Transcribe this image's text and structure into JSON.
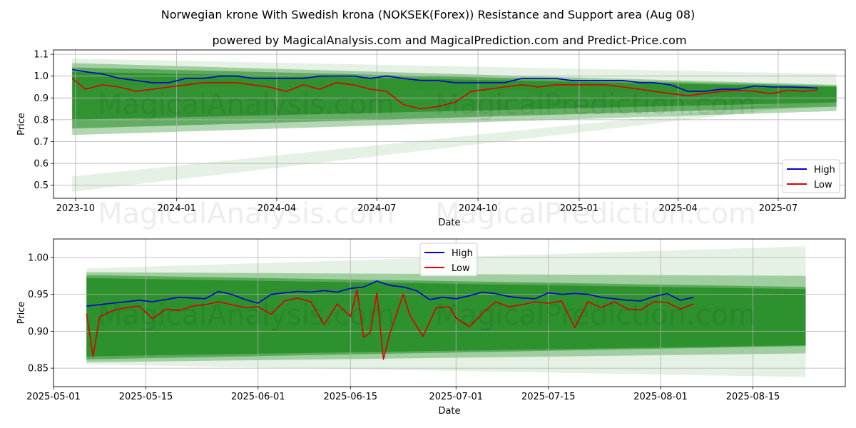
{
  "figure": {
    "title": "Norwegian krone With Swedish krona (NOKSEK(Forex)) Resistance and Support area (Aug 08)",
    "subtitle": "powered by MagicalAnalysis.com and MagicalPrediction.com and Predict-Price.com",
    "watermarks": [
      "MagicalAnalysis.com",
      "MagicalPrediction.com"
    ]
  },
  "colors": {
    "high": "#0000cc",
    "low": "#dd0000",
    "band": "#228b22",
    "grid": "#b0b0b0"
  },
  "chart_data": [
    {
      "type": "line",
      "id": "top",
      "xlabel": "Date",
      "ylabel": "Price",
      "xlim": [
        "2023-09-11",
        "2025-08-31"
      ],
      "ylim": [
        0.44,
        1.12
      ],
      "x_ticks": [
        "2023-10-01",
        "2024-01-01",
        "2024-04-01",
        "2024-07-01",
        "2024-10-01",
        "2025-01-01",
        "2025-04-01",
        "2025-07-01"
      ],
      "x_tick_labels": [
        "2023-10",
        "2024-01",
        "2024-04",
        "2024-07",
        "2024-10",
        "2025-01",
        "2025-04",
        "2025-07"
      ],
      "y_ticks": [
        0.5,
        0.6,
        0.7,
        0.8,
        0.9,
        1.0,
        1.1
      ],
      "y_tick_labels": [
        "0.5",
        "0.6",
        "0.7",
        "0.8",
        "0.9",
        "1.0",
        "1.1"
      ],
      "grid": true,
      "legend": {
        "position": "bottom-right",
        "entries": [
          "High",
          "Low"
        ]
      },
      "series": [
        {
          "name": "High",
          "x": [
            "2023-09-28",
            "2023-10-10",
            "2023-10-25",
            "2023-11-10",
            "2023-11-25",
            "2023-12-10",
            "2023-12-25",
            "2024-01-10",
            "2024-01-25",
            "2024-02-10",
            "2024-02-25",
            "2024-03-10",
            "2024-03-25",
            "2024-04-10",
            "2024-04-25",
            "2024-05-10",
            "2024-05-25",
            "2024-06-10",
            "2024-06-25",
            "2024-07-10",
            "2024-07-25",
            "2024-08-10",
            "2024-08-25",
            "2024-09-10",
            "2024-09-25",
            "2024-10-10",
            "2024-10-25",
            "2024-11-10",
            "2024-11-25",
            "2024-12-10",
            "2024-12-25",
            "2025-01-10",
            "2025-01-25",
            "2025-02-10",
            "2025-02-25",
            "2025-03-10",
            "2025-03-25",
            "2025-04-10",
            "2025-04-25",
            "2025-05-10",
            "2025-05-25",
            "2025-06-10",
            "2025-06-25",
            "2025-07-10",
            "2025-07-25",
            "2025-08-06"
          ],
          "values": [
            1.03,
            1.02,
            1.01,
            0.99,
            0.98,
            0.97,
            0.97,
            0.99,
            0.99,
            1.0,
            1.0,
            0.99,
            0.99,
            0.99,
            0.99,
            1.0,
            1.0,
            1.0,
            0.99,
            1.0,
            0.99,
            0.98,
            0.98,
            0.97,
            0.97,
            0.97,
            0.97,
            0.99,
            0.99,
            0.99,
            0.98,
            0.98,
            0.98,
            0.98,
            0.97,
            0.97,
            0.96,
            0.93,
            0.93,
            0.94,
            0.94,
            0.955,
            0.95,
            0.95,
            0.948,
            0.945
          ]
        },
        {
          "name": "Low",
          "x": [
            "2023-09-28",
            "2023-10-10",
            "2023-10-25",
            "2023-11-10",
            "2023-11-25",
            "2023-12-10",
            "2023-12-25",
            "2024-01-10",
            "2024-01-25",
            "2024-02-10",
            "2024-02-25",
            "2024-03-10",
            "2024-03-25",
            "2024-04-10",
            "2024-04-25",
            "2024-05-10",
            "2024-05-25",
            "2024-06-10",
            "2024-06-25",
            "2024-07-10",
            "2024-07-25",
            "2024-08-10",
            "2024-08-25",
            "2024-09-10",
            "2024-09-25",
            "2024-10-10",
            "2024-10-25",
            "2024-11-10",
            "2024-11-25",
            "2024-12-10",
            "2024-12-25",
            "2025-01-10",
            "2025-01-25",
            "2025-02-10",
            "2025-02-25",
            "2025-03-10",
            "2025-03-25",
            "2025-04-10",
            "2025-04-25",
            "2025-05-10",
            "2025-05-25",
            "2025-06-10",
            "2025-06-25",
            "2025-07-10",
            "2025-07-25",
            "2025-08-06"
          ],
          "values": [
            0.99,
            0.94,
            0.96,
            0.95,
            0.93,
            0.94,
            0.95,
            0.96,
            0.97,
            0.97,
            0.97,
            0.96,
            0.95,
            0.93,
            0.96,
            0.94,
            0.97,
            0.96,
            0.94,
            0.93,
            0.87,
            0.85,
            0.86,
            0.88,
            0.93,
            0.94,
            0.95,
            0.96,
            0.95,
            0.96,
            0.96,
            0.96,
            0.96,
            0.95,
            0.94,
            0.93,
            0.92,
            0.91,
            0.92,
            0.93,
            0.935,
            0.93,
            0.92,
            0.935,
            0.93,
            0.937
          ]
        }
      ],
      "bands": [
        {
          "start_date": "2023-09-28",
          "end_date": "2025-08-23",
          "upper_start": 1.06,
          "upper_end": 0.96,
          "lower_start": 0.73,
          "lower_end": 0.84,
          "opacity": 0.35
        },
        {
          "start_date": "2023-09-28",
          "end_date": "2025-08-23",
          "upper_start": 1.04,
          "upper_end": 0.955,
          "lower_start": 0.76,
          "lower_end": 0.86,
          "opacity": 0.55
        },
        {
          "start_date": "2023-09-28",
          "end_date": "2025-08-23",
          "upper_start": 1.02,
          "upper_end": 0.95,
          "lower_start": 0.8,
          "lower_end": 0.88,
          "opacity": 0.75
        },
        {
          "start_date": "2023-09-28",
          "end_date": "2025-08-23",
          "upper_start": 1.08,
          "upper_end": 1.01,
          "lower_start": 0.96,
          "lower_end": 0.91,
          "opacity": 0.12
        },
        {
          "start_date": "2023-09-28",
          "end_date": "2025-08-23",
          "upper_start": 0.54,
          "upper_end": 0.9,
          "lower_start": 0.47,
          "lower_end": 0.88,
          "opacity": 0.12
        }
      ]
    },
    {
      "type": "line",
      "id": "bottom",
      "xlabel": "Date",
      "ylabel": "Price",
      "xlim": [
        "2025-05-01",
        "2025-08-29"
      ],
      "ylim": [
        0.825,
        1.025
      ],
      "x_ticks": [
        "2025-05-01",
        "2025-05-15",
        "2025-06-01",
        "2025-06-15",
        "2025-07-01",
        "2025-07-15",
        "2025-08-01",
        "2025-08-15"
      ],
      "x_tick_labels": [
        "2025-05-01",
        "2025-05-15",
        "2025-06-01",
        "2025-06-15",
        "2025-07-01",
        "2025-07-15",
        "2025-08-01",
        "2025-08-15"
      ],
      "y_ticks": [
        0.85,
        0.9,
        0.95,
        1.0
      ],
      "y_tick_labels": [
        "0.85",
        "0.90",
        "0.95",
        "1.00"
      ],
      "grid": true,
      "legend": {
        "position": "top-center",
        "entries": [
          "High",
          "Low"
        ]
      },
      "series": [
        {
          "name": "High",
          "x": [
            "2025-05-06",
            "2025-05-08",
            "2025-05-10",
            "2025-05-12",
            "2025-05-14",
            "2025-05-16",
            "2025-05-18",
            "2025-05-20",
            "2025-05-22",
            "2025-05-24",
            "2025-05-26",
            "2025-05-28",
            "2025-05-30",
            "2025-06-01",
            "2025-06-03",
            "2025-06-05",
            "2025-06-07",
            "2025-06-09",
            "2025-06-11",
            "2025-06-13",
            "2025-06-15",
            "2025-06-17",
            "2025-06-19",
            "2025-06-21",
            "2025-06-23",
            "2025-06-25",
            "2025-06-27",
            "2025-06-29",
            "2025-07-01",
            "2025-07-03",
            "2025-07-05",
            "2025-07-07",
            "2025-07-09",
            "2025-07-11",
            "2025-07-13",
            "2025-07-15",
            "2025-07-17",
            "2025-07-19",
            "2025-07-21",
            "2025-07-23",
            "2025-07-25",
            "2025-07-27",
            "2025-07-29",
            "2025-07-31",
            "2025-08-02",
            "2025-08-04",
            "2025-08-06"
          ],
          "values": [
            0.934,
            0.936,
            0.938,
            0.94,
            0.942,
            0.94,
            0.943,
            0.946,
            0.945,
            0.944,
            0.954,
            0.95,
            0.943,
            0.938,
            0.95,
            0.952,
            0.954,
            0.953,
            0.955,
            0.953,
            0.958,
            0.96,
            0.968,
            0.962,
            0.96,
            0.955,
            0.943,
            0.946,
            0.944,
            0.948,
            0.953,
            0.951,
            0.947,
            0.945,
            0.944,
            0.952,
            0.95,
            0.951,
            0.95,
            0.946,
            0.944,
            0.942,
            0.941,
            0.947,
            0.951,
            0.942,
            0.946
          ]
        },
        {
          "name": "Low",
          "x": [
            "2025-05-06",
            "2025-05-07",
            "2025-05-08",
            "2025-05-10",
            "2025-05-12",
            "2025-05-14",
            "2025-05-16",
            "2025-05-18",
            "2025-05-20",
            "2025-05-22",
            "2025-05-24",
            "2025-05-26",
            "2025-05-28",
            "2025-05-30",
            "2025-06-01",
            "2025-06-03",
            "2025-06-05",
            "2025-06-07",
            "2025-06-09",
            "2025-06-11",
            "2025-06-13",
            "2025-06-15",
            "2025-06-16",
            "2025-06-17",
            "2025-06-18",
            "2025-06-19",
            "2025-06-20",
            "2025-06-21",
            "2025-06-23",
            "2025-06-24",
            "2025-06-26",
            "2025-06-28",
            "2025-06-30",
            "2025-07-01",
            "2025-07-03",
            "2025-07-05",
            "2025-07-07",
            "2025-07-09",
            "2025-07-11",
            "2025-07-13",
            "2025-07-15",
            "2025-07-17",
            "2025-07-19",
            "2025-07-21",
            "2025-07-23",
            "2025-07-25",
            "2025-07-27",
            "2025-07-29",
            "2025-07-31",
            "2025-08-02",
            "2025-08-04",
            "2025-08-06"
          ],
          "values": [
            0.924,
            0.866,
            0.92,
            0.928,
            0.932,
            0.934,
            0.917,
            0.93,
            0.928,
            0.934,
            0.936,
            0.94,
            0.936,
            0.932,
            0.933,
            0.923,
            0.941,
            0.945,
            0.94,
            0.909,
            0.937,
            0.92,
            0.956,
            0.892,
            0.898,
            0.952,
            0.862,
            0.898,
            0.95,
            0.922,
            0.893,
            0.932,
            0.933,
            0.918,
            0.906,
            0.924,
            0.94,
            0.933,
            0.936,
            0.94,
            0.938,
            0.941,
            0.905,
            0.94,
            0.932,
            0.94,
            0.93,
            0.929,
            0.94,
            0.939,
            0.93,
            0.937
          ]
        }
      ],
      "bands": [
        {
          "start_date": "2025-05-06",
          "end_date": "2025-08-23",
          "upper_start": 0.985,
          "upper_end": 1.015,
          "lower_start": 0.855,
          "lower_end": 0.838,
          "opacity": 0.12
        },
        {
          "start_date": "2025-05-06",
          "end_date": "2025-08-23",
          "upper_start": 0.98,
          "upper_end": 0.975,
          "lower_start": 0.858,
          "lower_end": 0.87,
          "opacity": 0.35
        },
        {
          "start_date": "2025-05-06",
          "end_date": "2025-08-23",
          "upper_start": 0.976,
          "upper_end": 0.96,
          "lower_start": 0.862,
          "lower_end": 0.88,
          "opacity": 0.55
        },
        {
          "start_date": "2025-05-06",
          "end_date": "2025-08-23",
          "upper_start": 0.972,
          "upper_end": 0.957,
          "lower_start": 0.866,
          "lower_end": 0.881,
          "opacity": 0.8
        }
      ]
    }
  ]
}
